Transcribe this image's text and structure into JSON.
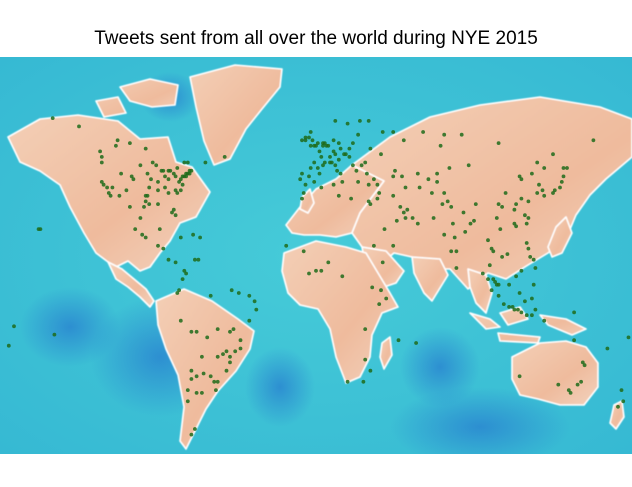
{
  "title": "Tweets sent from all over the world during NYE 2015",
  "map_style": {
    "ocean": "#3cc4d6",
    "ocean_deep": "#2a86d0",
    "land": "#f2c6aa",
    "land_edge": "#ffffff",
    "point_color": "#1f6b1a"
  },
  "chart_data": {
    "type": "scatter",
    "projection": "equirectangular world map",
    "xlabel": "",
    "ylabel": "",
    "points": [
      [
        -123,
        49
      ],
      [
        -122,
        47
      ],
      [
        -122,
        45
      ],
      [
        -122,
        38
      ],
      [
        -121,
        37
      ],
      [
        -118,
        34
      ],
      [
        -117,
        33
      ],
      [
        -112,
        33
      ],
      [
        -111,
        41
      ],
      [
        -105,
        40
      ],
      [
        -104,
        39
      ],
      [
        -97,
        33
      ],
      [
        -96,
        33
      ],
      [
        -95,
        30
      ],
      [
        -98,
        29
      ],
      [
        -97,
        31
      ],
      [
        -94,
        39
      ],
      [
        -95,
        36
      ],
      [
        -90,
        38
      ],
      [
        -88,
        42
      ],
      [
        -87,
        42
      ],
      [
        -86,
        40
      ],
      [
        -84,
        42
      ],
      [
        -83,
        42
      ],
      [
        -81,
        41
      ],
      [
        -84,
        34
      ],
      [
        -84,
        39
      ],
      [
        -80,
        40
      ],
      [
        -80,
        35
      ],
      [
        -81,
        28
      ],
      [
        -80,
        26
      ],
      [
        -82,
        27
      ],
      [
        -77,
        39
      ],
      [
        -76,
        40
      ],
      [
        -75,
        40
      ],
      [
        -74,
        41
      ],
      [
        -73,
        41
      ],
      [
        -71,
        42
      ],
      [
        -72,
        42
      ],
      [
        -79,
        43
      ],
      [
        -75,
        45
      ],
      [
        -73,
        45
      ],
      [
        -114,
        51
      ],
      [
        -113,
        53
      ],
      [
        -97,
        50
      ],
      [
        -106,
        52
      ],
      [
        -90,
        30
      ],
      [
        -90,
        35
      ],
      [
        -86,
        36
      ],
      [
        -78,
        38
      ],
      [
        -77,
        35
      ],
      [
        -79,
        34
      ],
      [
        -76,
        37
      ],
      [
        -74,
        40
      ],
      [
        -72,
        41
      ],
      [
        -91,
        44
      ],
      [
        -93,
        45
      ],
      [
        -96,
        41
      ],
      [
        -100,
        44
      ],
      [
        -108,
        35
      ],
      [
        -116,
        36
      ],
      [
        -119,
        36
      ],
      [
        -99,
        19
      ],
      [
        -103,
        21
      ],
      [
        -100,
        25
      ],
      [
        -106,
        29
      ],
      [
        -89,
        21
      ],
      [
        -97,
        18
      ],
      [
        -90,
        15
      ],
      [
        -87,
        14
      ],
      [
        -84,
        10
      ],
      [
        -80,
        9
      ],
      [
        -77,
        18
      ],
      [
        -70,
        19
      ],
      [
        -66,
        18
      ],
      [
        -74,
        5
      ],
      [
        -76,
        3
      ],
      [
        -75,
        6
      ],
      [
        -67,
        10
      ],
      [
        -69,
        10
      ],
      [
        -78,
        -1
      ],
      [
        -79,
        -2
      ],
      [
        -77,
        -12
      ],
      [
        -71,
        -16
      ],
      [
        -68,
        -16
      ],
      [
        -47,
        -15
      ],
      [
        -43,
        -22
      ],
      [
        -46,
        -23
      ],
      [
        -49,
        -25
      ],
      [
        -51,
        -30
      ],
      [
        -49,
        -27
      ],
      [
        -43,
        -19
      ],
      [
        -38,
        -12
      ],
      [
        -34,
        -8
      ],
      [
        -35,
        -5
      ],
      [
        -38,
        -3
      ],
      [
        -48,
        -1
      ],
      [
        -60,
        -3
      ],
      [
        -44,
        -2
      ],
      [
        -56,
        -15
      ],
      [
        -49,
        -16
      ],
      [
        -58,
        -34
      ],
      [
        -57,
        -37
      ],
      [
        -60,
        -32
      ],
      [
        -64,
        -31
      ],
      [
        -65,
        -25
      ],
      [
        -68,
        -32
      ],
      [
        -71,
        -33
      ],
      [
        -71,
        -30
      ],
      [
        -73,
        -37
      ],
      [
        -73,
        -41
      ],
      [
        -68,
        -38
      ],
      [
        -56,
        -34
      ],
      [
        -56,
        -25
      ],
      [
        -53,
        -24
      ],
      [
        -51,
        -23
      ],
      [
        -62,
        -18
      ],
      [
        -65,
        -38
      ],
      [
        -69,
        -51
      ],
      [
        -71,
        -53
      ],
      [
        -158,
        21
      ],
      [
        -157,
        21
      ],
      [
        -150,
        61
      ],
      [
        -135,
        58
      ],
      [
        -52,
        47
      ],
      [
        -63,
        45
      ],
      [
        -8,
        53
      ],
      [
        -6,
        53
      ],
      [
        -3,
        56
      ],
      [
        -4,
        54
      ],
      [
        -2,
        53
      ],
      [
        -1,
        51
      ],
      [
        0,
        51
      ],
      [
        1,
        52
      ],
      [
        -3,
        51
      ],
      [
        -6,
        54
      ],
      [
        4,
        52
      ],
      [
        5,
        52
      ],
      [
        4,
        51
      ],
      [
        6,
        51
      ],
      [
        2,
        49
      ],
      [
        3,
        47
      ],
      [
        5,
        45
      ],
      [
        -1,
        45
      ],
      [
        1,
        43
      ],
      [
        4,
        44
      ],
      [
        -4,
        40
      ],
      [
        -3,
        43
      ],
      [
        2,
        41
      ],
      [
        -9,
        39
      ],
      [
        -8,
        41
      ],
      [
        -6,
        37
      ],
      [
        -1,
        38
      ],
      [
        8,
        45
      ],
      [
        9,
        45
      ],
      [
        12,
        42
      ],
      [
        11,
        44
      ],
      [
        14,
        41
      ],
      [
        15,
        38
      ],
      [
        13,
        46
      ],
      [
        8,
        47
      ],
      [
        10,
        49
      ],
      [
        11,
        48
      ],
      [
        13,
        52
      ],
      [
        10,
        53
      ],
      [
        7,
        51
      ],
      [
        14,
        50
      ],
      [
        16,
        48
      ],
      [
        19,
        47
      ],
      [
        17,
        48
      ],
      [
        21,
        52
      ],
      [
        19,
        50
      ],
      [
        24,
        55
      ],
      [
        18,
        59
      ],
      [
        11,
        60
      ],
      [
        25,
        60
      ],
      [
        30,
        60
      ],
      [
        38,
        56
      ],
      [
        44,
        56
      ],
      [
        50,
        53
      ],
      [
        37,
        48
      ],
      [
        31,
        50
      ],
      [
        28,
        45
      ],
      [
        26,
        44
      ],
      [
        23,
        42
      ],
      [
        21,
        44
      ],
      [
        24,
        38
      ],
      [
        29,
        41
      ],
      [
        33,
        39
      ],
      [
        35,
        37
      ],
      [
        30,
        37
      ],
      [
        35,
        32
      ],
      [
        36,
        34
      ],
      [
        44,
        33
      ],
      [
        51,
        36
      ],
      [
        59,
        36
      ],
      [
        46,
        24
      ],
      [
        39,
        21
      ],
      [
        55,
        25
      ],
      [
        51,
        25
      ],
      [
        44,
        15
      ],
      [
        31,
        30
      ],
      [
        30,
        31
      ],
      [
        33,
        15
      ],
      [
        38,
        9
      ],
      [
        37,
        -1
      ],
      [
        40,
        -4
      ],
      [
        36,
        -6
      ],
      [
        28,
        -26
      ],
      [
        31,
        -30
      ],
      [
        18,
        -34
      ],
      [
        27,
        -34
      ],
      [
        3,
        6
      ],
      [
        7,
        9
      ],
      [
        0,
        6
      ],
      [
        -4,
        5
      ],
      [
        -17,
        15
      ],
      [
        -7,
        13
      ],
      [
        -7,
        34
      ],
      [
        -8,
        32
      ],
      [
        3,
        36
      ],
      [
        10,
        37
      ],
      [
        13,
        33
      ],
      [
        20,
        32
      ],
      [
        15,
        4
      ],
      [
        32,
        0
      ],
      [
        28,
        -15
      ],
      [
        47,
        -19
      ],
      [
        57,
        -20
      ],
      [
        73,
        19
      ],
      [
        77,
        29
      ],
      [
        77,
        13
      ],
      [
        80,
        13
      ],
      [
        88,
        23
      ],
      [
        75,
        31
      ],
      [
        78,
        23
      ],
      [
        73,
        34
      ],
      [
        79,
        18
      ],
      [
        84,
        27
      ],
      [
        90,
        24
      ],
      [
        85,
        20
      ],
      [
        80,
        7
      ],
      [
        67,
        25
      ],
      [
        72,
        30
      ],
      [
        69,
        41
      ],
      [
        71,
        51
      ],
      [
        76,
        43
      ],
      [
        87,
        44
      ],
      [
        104,
        52
      ],
      [
        83,
        55
      ],
      [
        61,
        56
      ],
      [
        73,
        55
      ],
      [
        130,
        43
      ],
      [
        135,
        48
      ],
      [
        158,
        53
      ],
      [
        100,
        14
      ],
      [
        98,
        17
      ],
      [
        101,
        13
      ],
      [
        99,
        8
      ],
      [
        105,
        21
      ],
      [
        106,
        11
      ],
      [
        109,
        12
      ],
      [
        101,
        3
      ],
      [
        102,
        2
      ],
      [
        103,
        1
      ],
      [
        104,
        1
      ],
      [
        95,
        5
      ],
      [
        98,
        3
      ],
      [
        100,
        -1
      ],
      [
        104,
        -3
      ],
      [
        107,
        -6
      ],
      [
        110,
        -7
      ],
      [
        112,
        -7
      ],
      [
        113,
        -8
      ],
      [
        115,
        -8
      ],
      [
        117,
        -9
      ],
      [
        120,
        -10
      ],
      [
        123,
        -10
      ],
      [
        125,
        -8
      ],
      [
        119,
        -5
      ],
      [
        124,
        1
      ],
      [
        123,
        -4
      ],
      [
        116,
        -2
      ],
      [
        110,
        1
      ],
      [
        114,
        4
      ],
      [
        117,
        6
      ],
      [
        121,
        14
      ],
      [
        122,
        11
      ],
      [
        124,
        10
      ],
      [
        125,
        7
      ],
      [
        120,
        16
      ],
      [
        120,
        23
      ],
      [
        121,
        25
      ],
      [
        114,
        22
      ],
      [
        113,
        23
      ],
      [
        119,
        26
      ],
      [
        121,
        31
      ],
      [
        117,
        32
      ],
      [
        114,
        30
      ],
      [
        116,
        40
      ],
      [
        117,
        39
      ],
      [
        123,
        41
      ],
      [
        126,
        45
      ],
      [
        127,
        37
      ],
      [
        129,
        35
      ],
      [
        126,
        34
      ],
      [
        130,
        33
      ],
      [
        135,
        34
      ],
      [
        136,
        35
      ],
      [
        139,
        36
      ],
      [
        140,
        38
      ],
      [
        141,
        40
      ],
      [
        141,
        43
      ],
      [
        143,
        43
      ],
      [
        104,
        30
      ],
      [
        106,
        29
      ],
      [
        108,
        34
      ],
      [
        103,
        25
      ],
      [
        91,
        30
      ],
      [
        113,
        28
      ],
      [
        152,
        -27
      ],
      [
        153,
        -28
      ],
      [
        151,
        -34
      ],
      [
        149,
        -35
      ],
      [
        145,
        -38
      ],
      [
        144,
        -37
      ],
      [
        138,
        -35
      ],
      [
        116,
        -32
      ],
      [
        130,
        -12
      ],
      [
        147,
        -19
      ],
      [
        174,
        -37
      ],
      [
        175,
        -41
      ],
      [
        172,
        -43
      ],
      [
        147,
        -9
      ],
      [
        178,
        -18
      ],
      [
        166,
        -22
      ],
      [
        -149,
        -17
      ],
      [
        -172,
        -14
      ],
      [
        -175,
        -21
      ],
      [
        44,
        40
      ],
      [
        45,
        42
      ],
      [
        49,
        40
      ],
      [
        58,
        41
      ],
      [
        64,
        39
      ],
      [
        69,
        38
      ],
      [
        66,
        34
      ],
      [
        52,
        28
      ],
      [
        48,
        29
      ],
      [
        50,
        27
      ],
      [
        58,
        23
      ]
    ]
  }
}
